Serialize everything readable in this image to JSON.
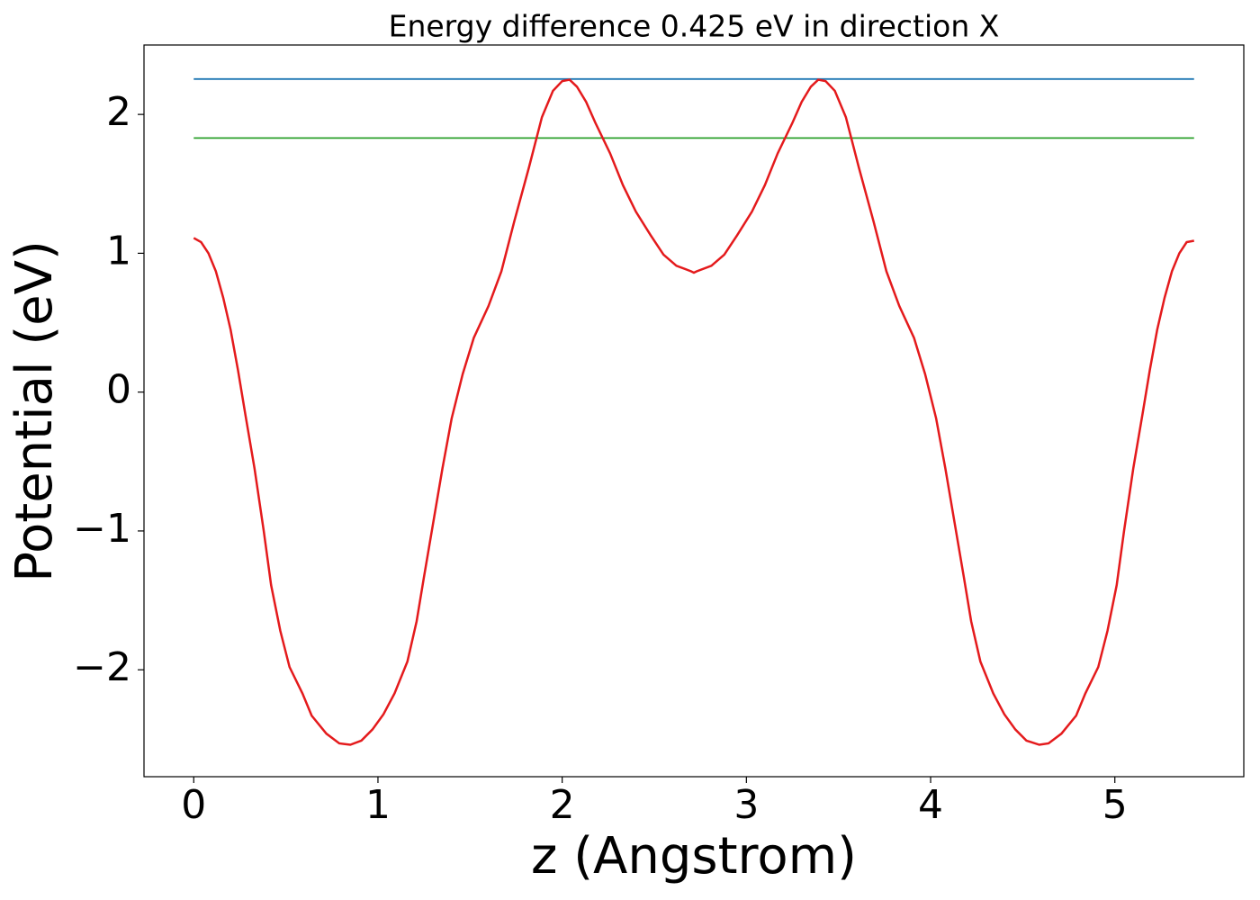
{
  "chart_data": {
    "type": "line",
    "title": "Energy difference 0.425 eV in direction X",
    "x_label": "z (Angstrom)",
    "y_label": "Potential (eV)",
    "xlim": [
      -0.27,
      5.7
    ],
    "ylim": [
      -2.77,
      2.5
    ],
    "xticks": [
      0,
      1,
      2,
      3,
      4,
      5
    ],
    "yticks": [
      {
        "value": -2,
        "label": "−2"
      },
      {
        "value": -1,
        "label": "−1"
      },
      0,
      1,
      2
    ],
    "series": [
      {
        "color": "#1f77b4",
        "x": [
          0,
          5.43
        ],
        "values": [
          2.255,
          2.255
        ]
      },
      {
        "color": "#2ca02c",
        "x": [
          0,
          5.43
        ],
        "values": [
          1.83,
          1.83
        ]
      },
      {
        "color": "#e41a1c",
        "x": [
          0,
          0.04,
          0.08,
          0.12,
          0.16,
          0.2,
          0.24,
          0.28,
          0.33,
          0.38,
          0.42,
          0.47,
          0.52,
          0.59,
          0.64,
          0.72,
          0.79,
          0.85,
          0.91,
          0.97,
          1.03,
          1.09,
          1.16,
          1.21,
          1.25,
          1.3,
          1.35,
          1.4,
          1.46,
          1.52,
          1.6,
          1.67,
          1.74,
          1.82,
          1.89,
          1.95,
          2.0,
          2.04,
          2.08,
          2.13,
          2.18,
          2.26,
          2.33,
          2.4,
          2.48,
          2.55,
          2.62,
          2.7,
          2.715,
          2.73,
          2.81,
          2.88,
          2.95,
          3.03,
          3.1,
          3.17,
          3.25,
          3.3,
          3.35,
          3.39,
          3.43,
          3.48,
          3.54,
          3.61,
          3.69,
          3.76,
          3.83,
          3.91,
          3.97,
          4.03,
          4.08,
          4.13,
          4.18,
          4.22,
          4.27,
          4.34,
          4.4,
          4.46,
          4.52,
          4.59,
          4.64,
          4.71,
          4.79,
          4.84,
          4.91,
          4.96,
          5.01,
          5.05,
          5.1,
          5.15,
          5.19,
          5.23,
          5.27,
          5.31,
          5.35,
          5.39,
          5.43
        ],
        "values": [
          1.11,
          1.08,
          1.0,
          0.87,
          0.68,
          0.45,
          0.16,
          -0.16,
          -0.55,
          -1.0,
          -1.39,
          -1.72,
          -1.98,
          -2.17,
          -2.33,
          -2.46,
          -2.53,
          -2.54,
          -2.51,
          -2.43,
          -2.32,
          -2.17,
          -1.94,
          -1.65,
          -1.33,
          -0.94,
          -0.55,
          -0.19,
          0.13,
          0.39,
          0.62,
          0.87,
          1.23,
          1.62,
          1.98,
          2.17,
          2.24,
          2.25,
          2.2,
          2.09,
          1.94,
          1.72,
          1.49,
          1.3,
          1.13,
          0.99,
          0.91,
          0.87,
          0.86,
          0.87,
          0.91,
          0.99,
          1.13,
          1.3,
          1.49,
          1.72,
          1.94,
          2.09,
          2.2,
          2.25,
          2.24,
          2.17,
          1.98,
          1.62,
          1.23,
          0.87,
          0.62,
          0.39,
          0.13,
          -0.19,
          -0.55,
          -0.94,
          -1.33,
          -1.65,
          -1.94,
          -2.17,
          -2.32,
          -2.43,
          -2.51,
          -2.54,
          -2.53,
          -2.46,
          -2.33,
          -2.17,
          -1.98,
          -1.72,
          -1.39,
          -1.0,
          -0.55,
          -0.16,
          0.16,
          0.45,
          0.68,
          0.87,
          1.0,
          1.08,
          1.09
        ]
      }
    ]
  }
}
